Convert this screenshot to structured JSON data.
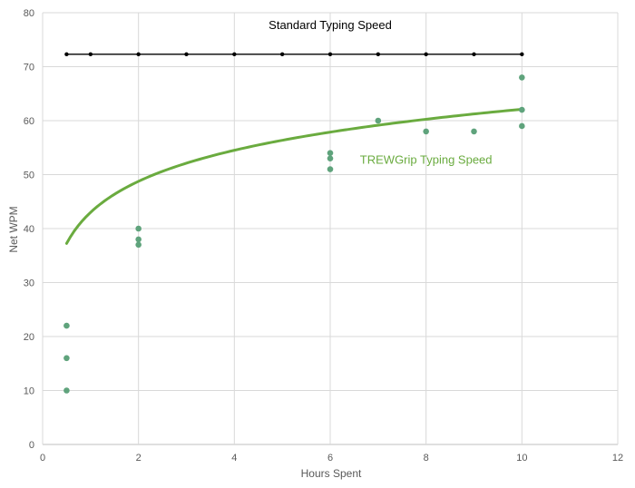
{
  "chart_data": {
    "type": "scatter",
    "title": "",
    "xlabel": "Hours Spent",
    "ylabel": "Net WPM",
    "xlim": [
      0,
      12
    ],
    "ylim": [
      0,
      80
    ],
    "x_ticks": [
      0,
      2,
      4,
      6,
      8,
      10,
      12
    ],
    "y_ticks": [
      0,
      10,
      20,
      30,
      40,
      50,
      60,
      70,
      80
    ],
    "grid": "vertical and horizontal major gridlines",
    "legend": "none",
    "series": [
      {
        "style": "line-with-markers",
        "color": "#000000",
        "x": [
          0.5,
          1,
          2,
          3,
          4,
          5,
          6,
          7,
          8,
          9,
          10
        ],
        "y": [
          72.3,
          72.3,
          72.3,
          72.3,
          72.3,
          72.3,
          72.3,
          72.3,
          72.3,
          72.3,
          72.3
        ]
      },
      {
        "style": "markers",
        "color": "#5fa37c",
        "x": [
          0.5,
          0.5,
          0.5,
          2,
          2,
          2,
          6,
          6,
          6,
          7,
          8,
          9,
          10,
          10,
          10
        ],
        "y": [
          22,
          16,
          10,
          40,
          38,
          37,
          54,
          53,
          51,
          60,
          58,
          58,
          68,
          62,
          59
        ]
      },
      {
        "style": "trendline",
        "trend": "logarithmic",
        "color": "#6aab3f",
        "x_range": [
          0.5,
          10
        ],
        "coefficients": {
          "a": 8.3,
          "b": 43.0
        }
      }
    ],
    "annotations": [
      {
        "text": "Standard Typing Speed",
        "x": 6.0,
        "y": 77.0,
        "color": "#000000"
      },
      {
        "text": "TREWGrip Typing Speed",
        "x": 8.0,
        "y": 52.0,
        "color": "#6aab3f"
      }
    ],
    "colors": {
      "gridline": "#d9d9d9",
      "tick_text": "#595959",
      "marker_green": "#5fa37c",
      "trend_green": "#6aab3f",
      "standard_line": "#000000"
    }
  }
}
